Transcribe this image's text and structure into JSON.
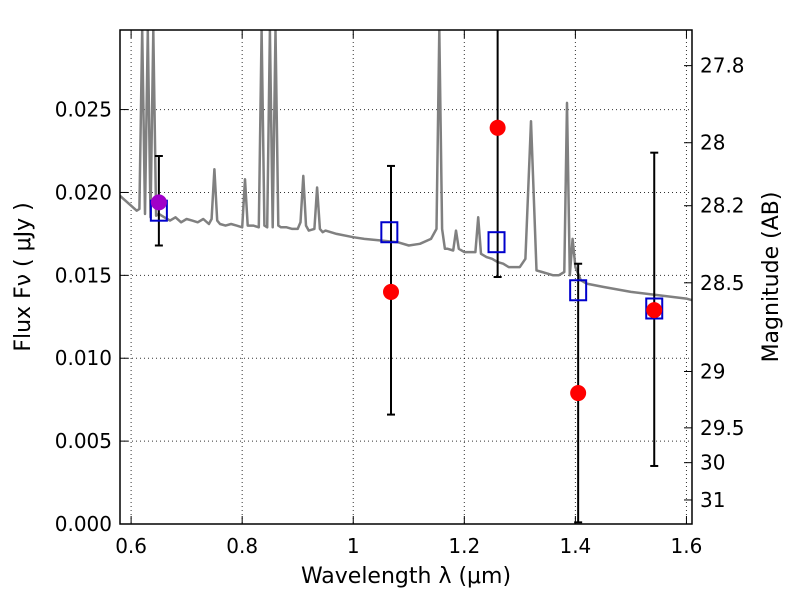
{
  "chart_data": {
    "type": "scatter",
    "xlabel": "Wavelength  λ (μm)",
    "ylabel": "Flux  Fν  ( μJy )",
    "ylabel_right": "Magnitude (AB)",
    "xlim": [
      0.58,
      1.61
    ],
    "ylim": [
      0.0,
      0.0298
    ],
    "x_ticks": [
      0.6,
      0.8,
      1.0,
      1.2,
      1.4,
      1.6
    ],
    "x_tick_labels": [
      "0.6",
      "0.8",
      "1",
      "1.2",
      "1.4",
      "1.6"
    ],
    "y_ticks": [
      0.0,
      0.005,
      0.01,
      0.015,
      0.02,
      0.025
    ],
    "y_tick_labels": [
      "0.000",
      "0.005",
      "0.010",
      "0.015",
      "0.020",
      "0.025"
    ],
    "right_ticks": [
      {
        "label": "27.8",
        "flux": 0.02765
      },
      {
        "label": "28",
        "flux": 0.023
      },
      {
        "label": "28.2",
        "flux": 0.0192
      },
      {
        "label": "28.5",
        "flux": 0.01455
      },
      {
        "label": "29",
        "flux": 0.0092
      },
      {
        "label": "29.5",
        "flux": 0.0058
      },
      {
        "label": "30",
        "flux": 0.0037
      },
      {
        "label": "31",
        "flux": 0.00145
      }
    ],
    "grid": true,
    "series": [
      {
        "style": "spectrum-line",
        "color": "#808080",
        "x": [
          0.58,
          0.6,
          0.61,
          0.615,
          0.62,
          0.625,
          0.63,
          0.635,
          0.64,
          0.645,
          0.65,
          0.66,
          0.67,
          0.68,
          0.69,
          0.7,
          0.71,
          0.72,
          0.73,
          0.74,
          0.745,
          0.75,
          0.755,
          0.76,
          0.77,
          0.78,
          0.79,
          0.8,
          0.805,
          0.81,
          0.82,
          0.83,
          0.835,
          0.84,
          0.845,
          0.85,
          0.855,
          0.86,
          0.865,
          0.87,
          0.88,
          0.89,
          0.9,
          0.905,
          0.91,
          0.915,
          0.92,
          0.93,
          0.935,
          0.94,
          0.945,
          0.95,
          0.97,
          1.0,
          1.02,
          1.05,
          1.08,
          1.1,
          1.12,
          1.14,
          1.15,
          1.155,
          1.16,
          1.165,
          1.17,
          1.18,
          1.185,
          1.19,
          1.2,
          1.22,
          1.225,
          1.23,
          1.24,
          1.25,
          1.26,
          1.27,
          1.28,
          1.3,
          1.31,
          1.32,
          1.33,
          1.34,
          1.36,
          1.37,
          1.38,
          1.385,
          1.39,
          1.395,
          1.4,
          1.41,
          1.42,
          1.45,
          1.5,
          1.55,
          1.6,
          1.61
        ],
        "y": [
          0.0198,
          0.0192,
          0.0189,
          0.019,
          0.0298,
          0.0187,
          0.0298,
          0.0185,
          0.0298,
          0.0186,
          0.0187,
          0.0185,
          0.0183,
          0.0185,
          0.0182,
          0.0184,
          0.0183,
          0.0182,
          0.0184,
          0.0181,
          0.0184,
          0.0214,
          0.0183,
          0.0181,
          0.018,
          0.0181,
          0.018,
          0.0179,
          0.0208,
          0.018,
          0.018,
          0.0179,
          0.0298,
          0.018,
          0.0179,
          0.0298,
          0.0179,
          0.0298,
          0.018,
          0.0179,
          0.0179,
          0.0178,
          0.0178,
          0.0182,
          0.021,
          0.018,
          0.0177,
          0.0178,
          0.0203,
          0.0178,
          0.0176,
          0.0177,
          0.0175,
          0.0173,
          0.0172,
          0.0171,
          0.017,
          0.0168,
          0.0169,
          0.0172,
          0.0178,
          0.0298,
          0.0178,
          0.0166,
          0.0166,
          0.0165,
          0.0177,
          0.0166,
          0.0164,
          0.0164,
          0.0185,
          0.0163,
          0.0161,
          0.016,
          0.0158,
          0.0157,
          0.0155,
          0.0155,
          0.016,
          0.0243,
          0.0153,
          0.0152,
          0.015,
          0.015,
          0.0152,
          0.0254,
          0.015,
          0.0172,
          0.0155,
          0.0147,
          0.0145,
          0.0143,
          0.014,
          0.0138,
          0.0136,
          0.0135
        ]
      },
      {
        "style": "square",
        "color": "#0000cc",
        "x": [
          0.65,
          1.065,
          1.258,
          1.405,
          1.542
        ],
        "y": [
          0.0189,
          0.0176,
          0.017,
          0.0141,
          0.013
        ]
      },
      {
        "style": "filled-circle",
        "color": "#ff0000",
        "x": [
          1.068,
          1.26,
          1.405,
          1.542
        ],
        "y": [
          0.014,
          0.0239,
          0.0079,
          0.0129
        ],
        "yerr_low": [
          0.0066,
          0.0149,
          0.0001,
          0.0035
        ],
        "yerr_high": [
          0.0216,
          0.0298,
          0.0157,
          0.0224
        ]
      },
      {
        "style": "filled-circle",
        "color": "#a000c8",
        "x": [
          0.65
        ],
        "y": [
          0.0194
        ],
        "yerr_low": [
          0.0168
        ],
        "yerr_high": [
          0.0222
        ]
      }
    ]
  }
}
